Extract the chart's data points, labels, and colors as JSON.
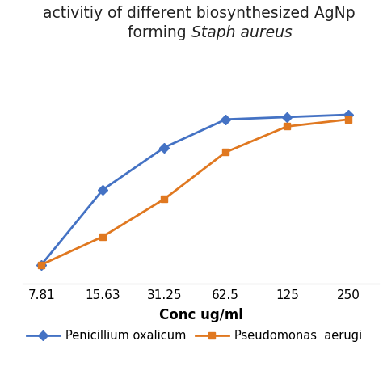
{
  "title_line1": "activitiy of different biosynthesized AgNp",
  "title_line2_normal": "forming ",
  "title_line2_italic": "Staph aureus",
  "xlabel": "Conc ug/ml",
  "x_labels": [
    "7.81",
    "15.63",
    "31.25",
    "62.5",
    "125",
    "250"
  ],
  "series": [
    {
      "name": "Penicillium oxalicum",
      "color": "#4472C4",
      "marker": "D",
      "marker_size": 6,
      "y_values": [
        8,
        40,
        58,
        70,
        71,
        72
      ]
    },
    {
      "name": "Pseudomonas  aerugi",
      "color": "#E07820",
      "marker": "s",
      "marker_size": 6,
      "y_values": [
        8,
        20,
        36,
        56,
        67,
        70
      ]
    }
  ],
  "ylim": [
    0,
    85
  ],
  "background_color": "#ffffff",
  "title_fontsize": 13.5,
  "xlabel_fontsize": 12,
  "tick_fontsize": 11,
  "legend_fontsize": 10.5,
  "grid_color": "#d0d0d0",
  "linewidth": 2.0
}
